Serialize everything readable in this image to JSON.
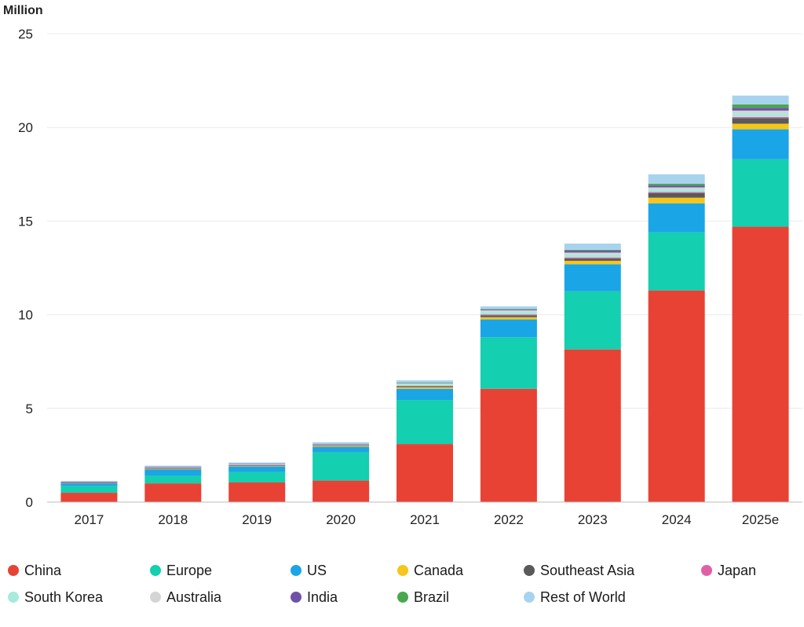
{
  "chart_data": {
    "type": "bar",
    "stacked": true,
    "ylabel": "Million",
    "xlabel": "",
    "ylim": [
      0,
      25
    ],
    "yticks": [
      0,
      5,
      10,
      15,
      20,
      25
    ],
    "grid": true,
    "legend_position": "bottom",
    "categories": [
      "2017",
      "2018",
      "2019",
      "2020",
      "2021",
      "2022",
      "2023",
      "2024",
      "2025e"
    ],
    "series": [
      {
        "name": "China",
        "color": "#e84235",
        "values": [
          0.5,
          1.0,
          1.05,
          1.15,
          3.1,
          6.05,
          8.15,
          11.3,
          14.7
        ]
      },
      {
        "name": "Europe",
        "color": "#14cfb0",
        "values": [
          0.35,
          0.4,
          0.55,
          1.5,
          2.35,
          2.75,
          3.1,
          3.1,
          3.6
        ]
      },
      {
        "name": "US",
        "color": "#1aa5e6",
        "values": [
          0.15,
          0.35,
          0.3,
          0.3,
          0.6,
          0.95,
          1.45,
          1.55,
          1.6
        ]
      },
      {
        "name": "Canada",
        "color": "#f6c618",
        "values": [
          0.02,
          0.04,
          0.04,
          0.05,
          0.08,
          0.12,
          0.18,
          0.3,
          0.3
        ]
      },
      {
        "name": "Southeast Asia",
        "color": "#5a5a5a",
        "values": [
          0.01,
          0.01,
          0.01,
          0.02,
          0.05,
          0.1,
          0.12,
          0.25,
          0.3
        ]
      },
      {
        "name": "Japan",
        "color": "#e060a8",
        "values": [
          0.02,
          0.03,
          0.03,
          0.02,
          0.03,
          0.05,
          0.06,
          0.05,
          0.06
        ]
      },
      {
        "name": "South Korea",
        "color": "#a8eadb",
        "values": [
          0.02,
          0.04,
          0.05,
          0.05,
          0.1,
          0.15,
          0.16,
          0.15,
          0.2
        ]
      },
      {
        "name": "Australia",
        "color": "#d4d4d4",
        "values": [
          0.005,
          0.01,
          0.01,
          0.01,
          0.03,
          0.07,
          0.1,
          0.1,
          0.14
        ]
      },
      {
        "name": "India",
        "color": "#6f52a8",
        "values": [
          0.005,
          0.005,
          0.005,
          0.005,
          0.02,
          0.05,
          0.1,
          0.1,
          0.15
        ]
      },
      {
        "name": "Brazil",
        "color": "#49a84f",
        "values": [
          0.0,
          0.0,
          0.0,
          0.0,
          0.01,
          0.02,
          0.05,
          0.1,
          0.18
        ]
      },
      {
        "name": "Rest of World",
        "color": "#a8d3ee",
        "values": [
          0.05,
          0.06,
          0.07,
          0.09,
          0.13,
          0.14,
          0.33,
          0.5,
          0.47
        ]
      }
    ]
  },
  "legend": {
    "items": [
      {
        "label": "China",
        "color": "#e84235"
      },
      {
        "label": "Europe",
        "color": "#14cfb0"
      },
      {
        "label": "US",
        "color": "#1aa5e6"
      },
      {
        "label": "Canada",
        "color": "#f6c618"
      },
      {
        "label": "Southeast Asia",
        "color": "#5a5a5a"
      },
      {
        "label": "Japan",
        "color": "#e060a8"
      },
      {
        "label": "South Korea",
        "color": "#a8eadb"
      },
      {
        "label": "Australia",
        "color": "#d4d4d4"
      },
      {
        "label": "India",
        "color": "#6f52a8"
      },
      {
        "label": "Brazil",
        "color": "#49a84f"
      },
      {
        "label": "Rest of World",
        "color": "#a8d3ee"
      }
    ]
  }
}
